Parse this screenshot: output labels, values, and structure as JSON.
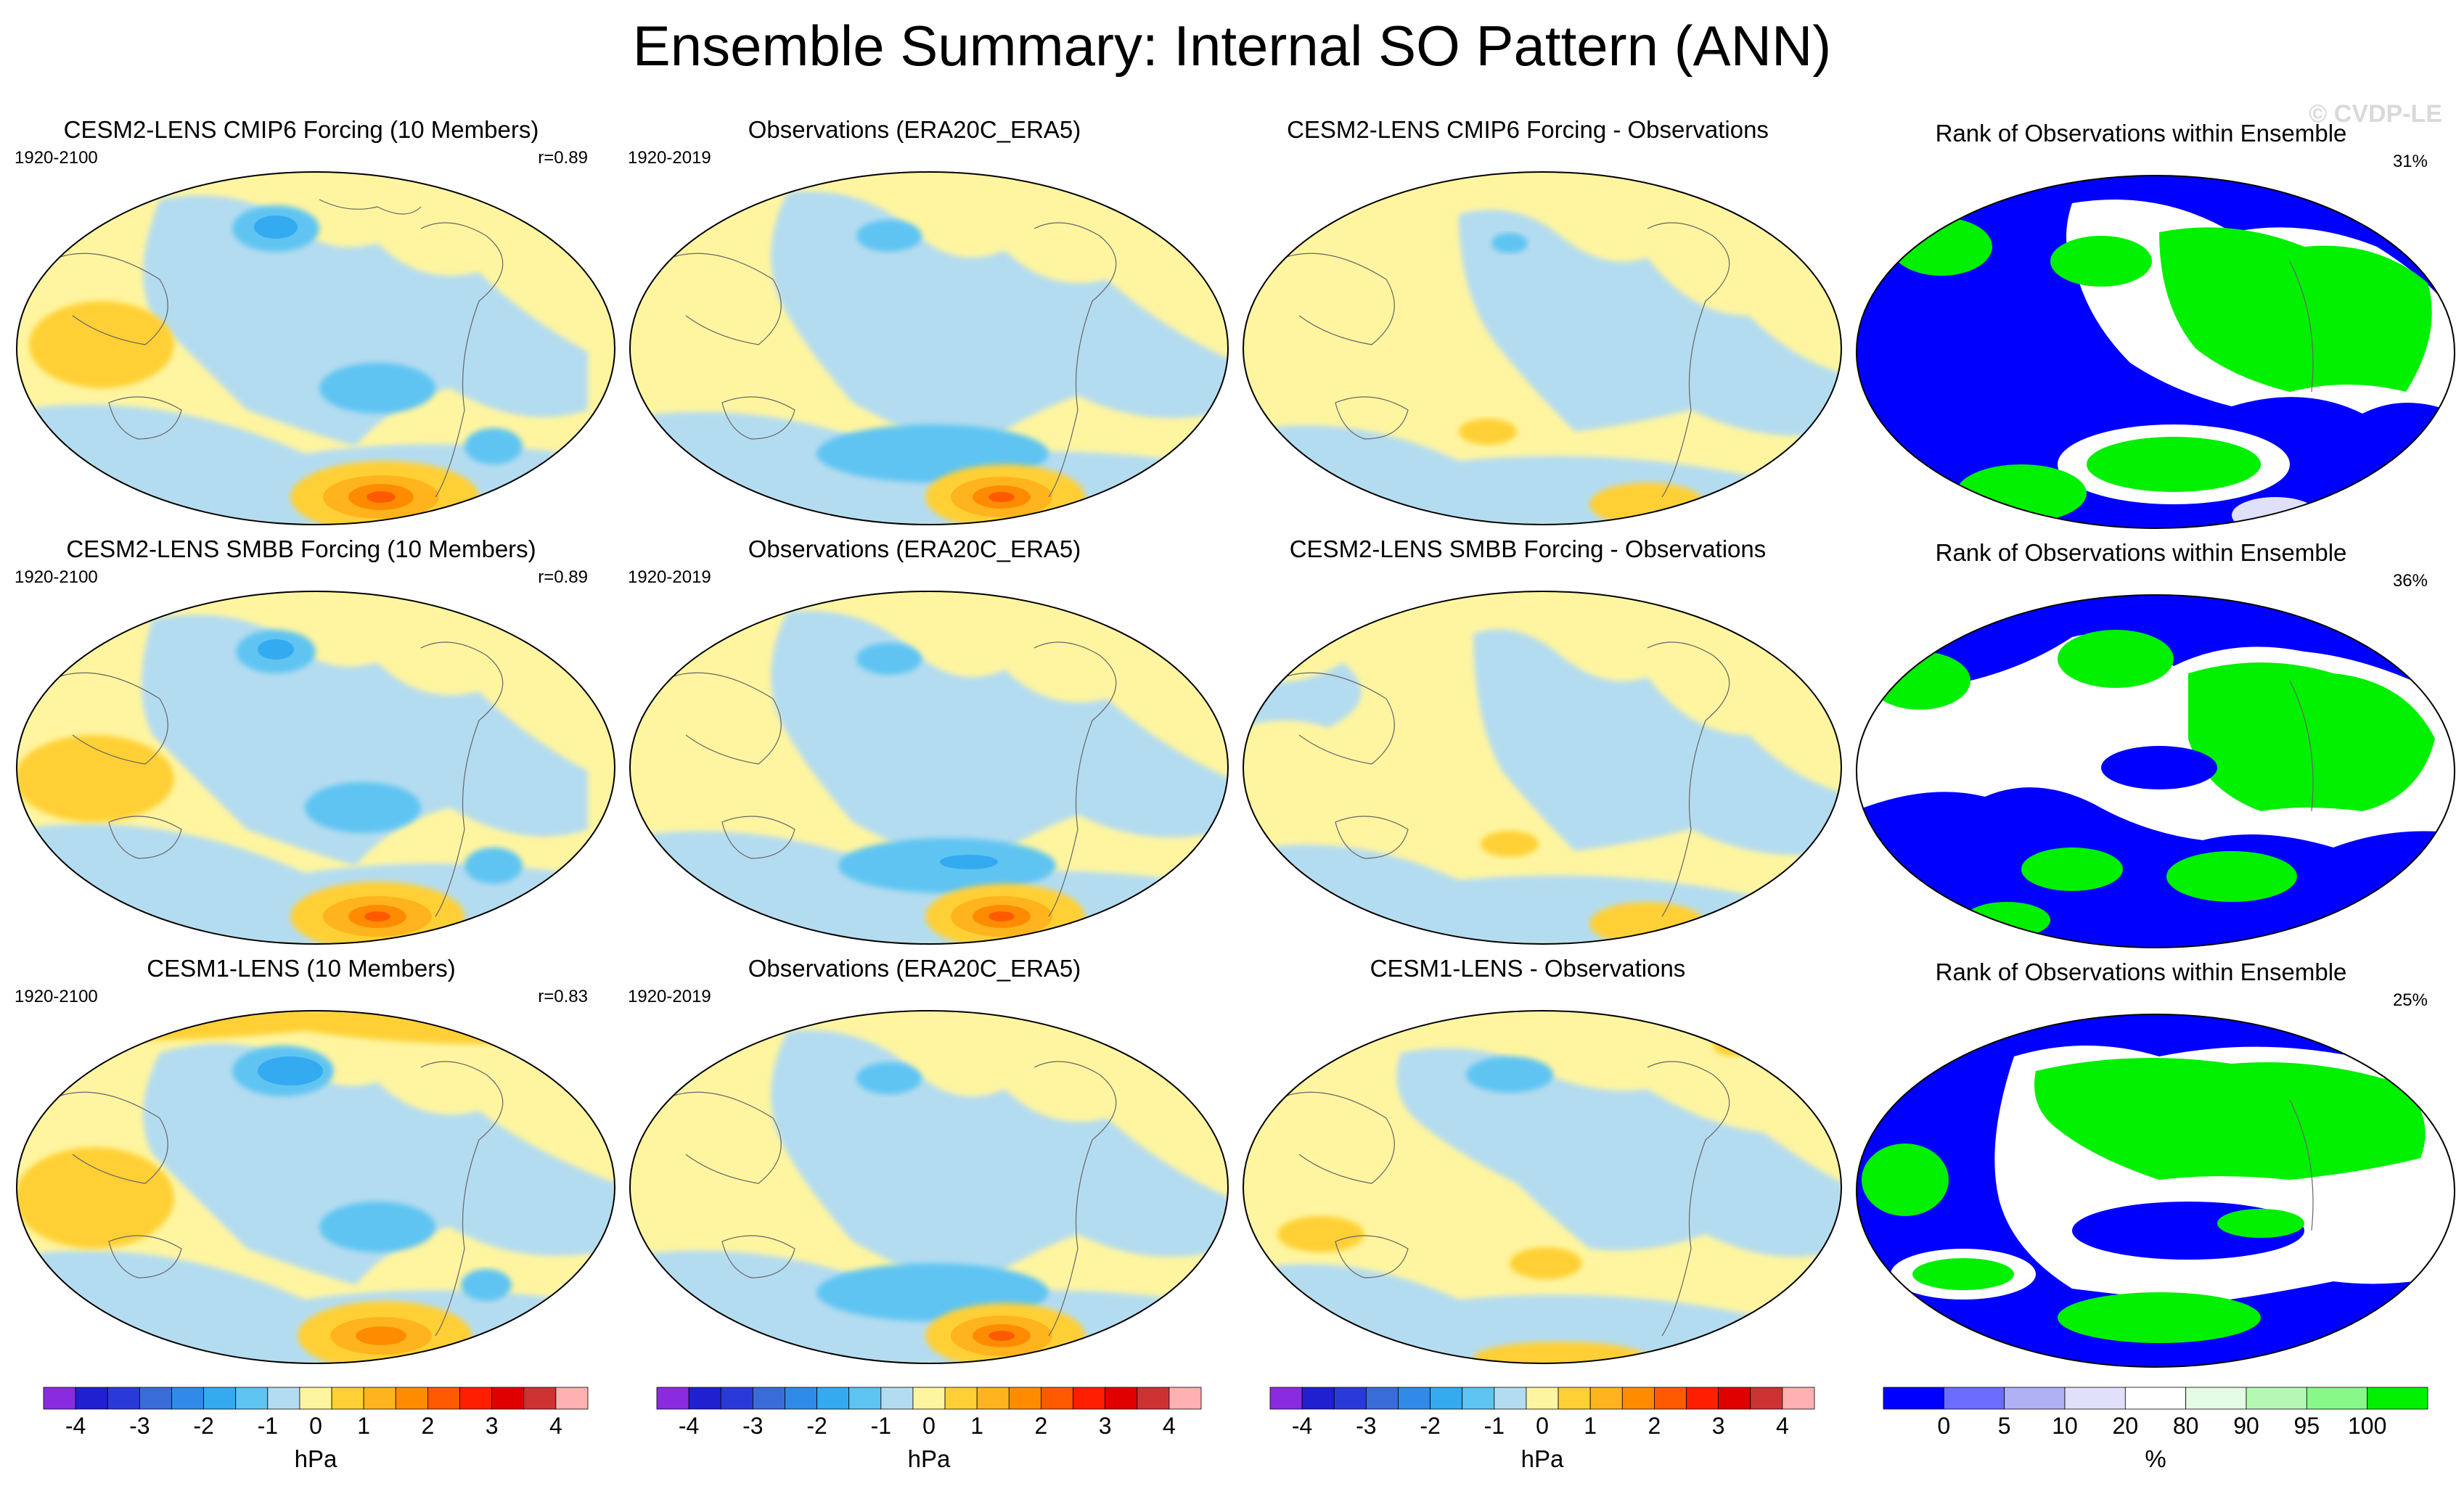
{
  "title": "Ensemble Summary: Internal SO Pattern (ANN)",
  "watermark": "© CVDP-LE",
  "rows": [
    {
      "model": {
        "title": "CESM2-LENS CMIP6 Forcing (10 Members)",
        "period": "1920-2100",
        "corr": "r=0.89"
      },
      "obs": {
        "title": "Observations (ERA20C_ERA5)",
        "period": "1920-2019"
      },
      "diff": {
        "title": "CESM2-LENS CMIP6 Forcing - Observations"
      },
      "rank": {
        "title": "Rank of Observations within Ensemble",
        "pct": "31%"
      }
    },
    {
      "model": {
        "title": "CESM2-LENS SMBB Forcing (10 Members)",
        "period": "1920-2100",
        "corr": "r=0.89"
      },
      "obs": {
        "title": "Observations (ERA20C_ERA5)",
        "period": "1920-2019"
      },
      "diff": {
        "title": "CESM2-LENS SMBB Forcing - Observations"
      },
      "rank": {
        "title": "Rank of Observations within Ensemble",
        "pct": "36%"
      }
    },
    {
      "model": {
        "title": "CESM1-LENS (10 Members)",
        "period": "1920-2100",
        "corr": "r=0.83"
      },
      "obs": {
        "title": "Observations (ERA20C_ERA5)",
        "period": "1920-2019"
      },
      "diff": {
        "title": "CESM1-LENS - Observations"
      },
      "rank": {
        "title": "Rank of Observations within Ensemble",
        "pct": "25%"
      }
    }
  ],
  "hpa_colorbar": {
    "colors": [
      "#8a2be2",
      "#2020d0",
      "#2a3ad8",
      "#3a6cd8",
      "#2f8ae8",
      "#34aaf0",
      "#5ec4f2",
      "#b4dcf0",
      "#fff5a0",
      "#ffd035",
      "#ffb41e",
      "#ff8c00",
      "#ff5a00",
      "#ff1e00",
      "#e00000",
      "#cd3232",
      "#ffb0b0"
    ],
    "labels": [
      "-4",
      "-3",
      "-2",
      "-1",
      "0",
      "1",
      "2",
      "3",
      "4"
    ],
    "units": "hPa"
  },
  "rank_colorbar": {
    "colors": [
      "#0000ff",
      "#6c6cff",
      "#b0b0f4",
      "#e0e0fa",
      "#ffffff",
      "#e4fce4",
      "#b4f8b4",
      "#88f888",
      "#00f000"
    ],
    "labels": [
      "0",
      "5",
      "10",
      "20",
      "80",
      "90",
      "95",
      "100"
    ],
    "units": "%"
  }
}
